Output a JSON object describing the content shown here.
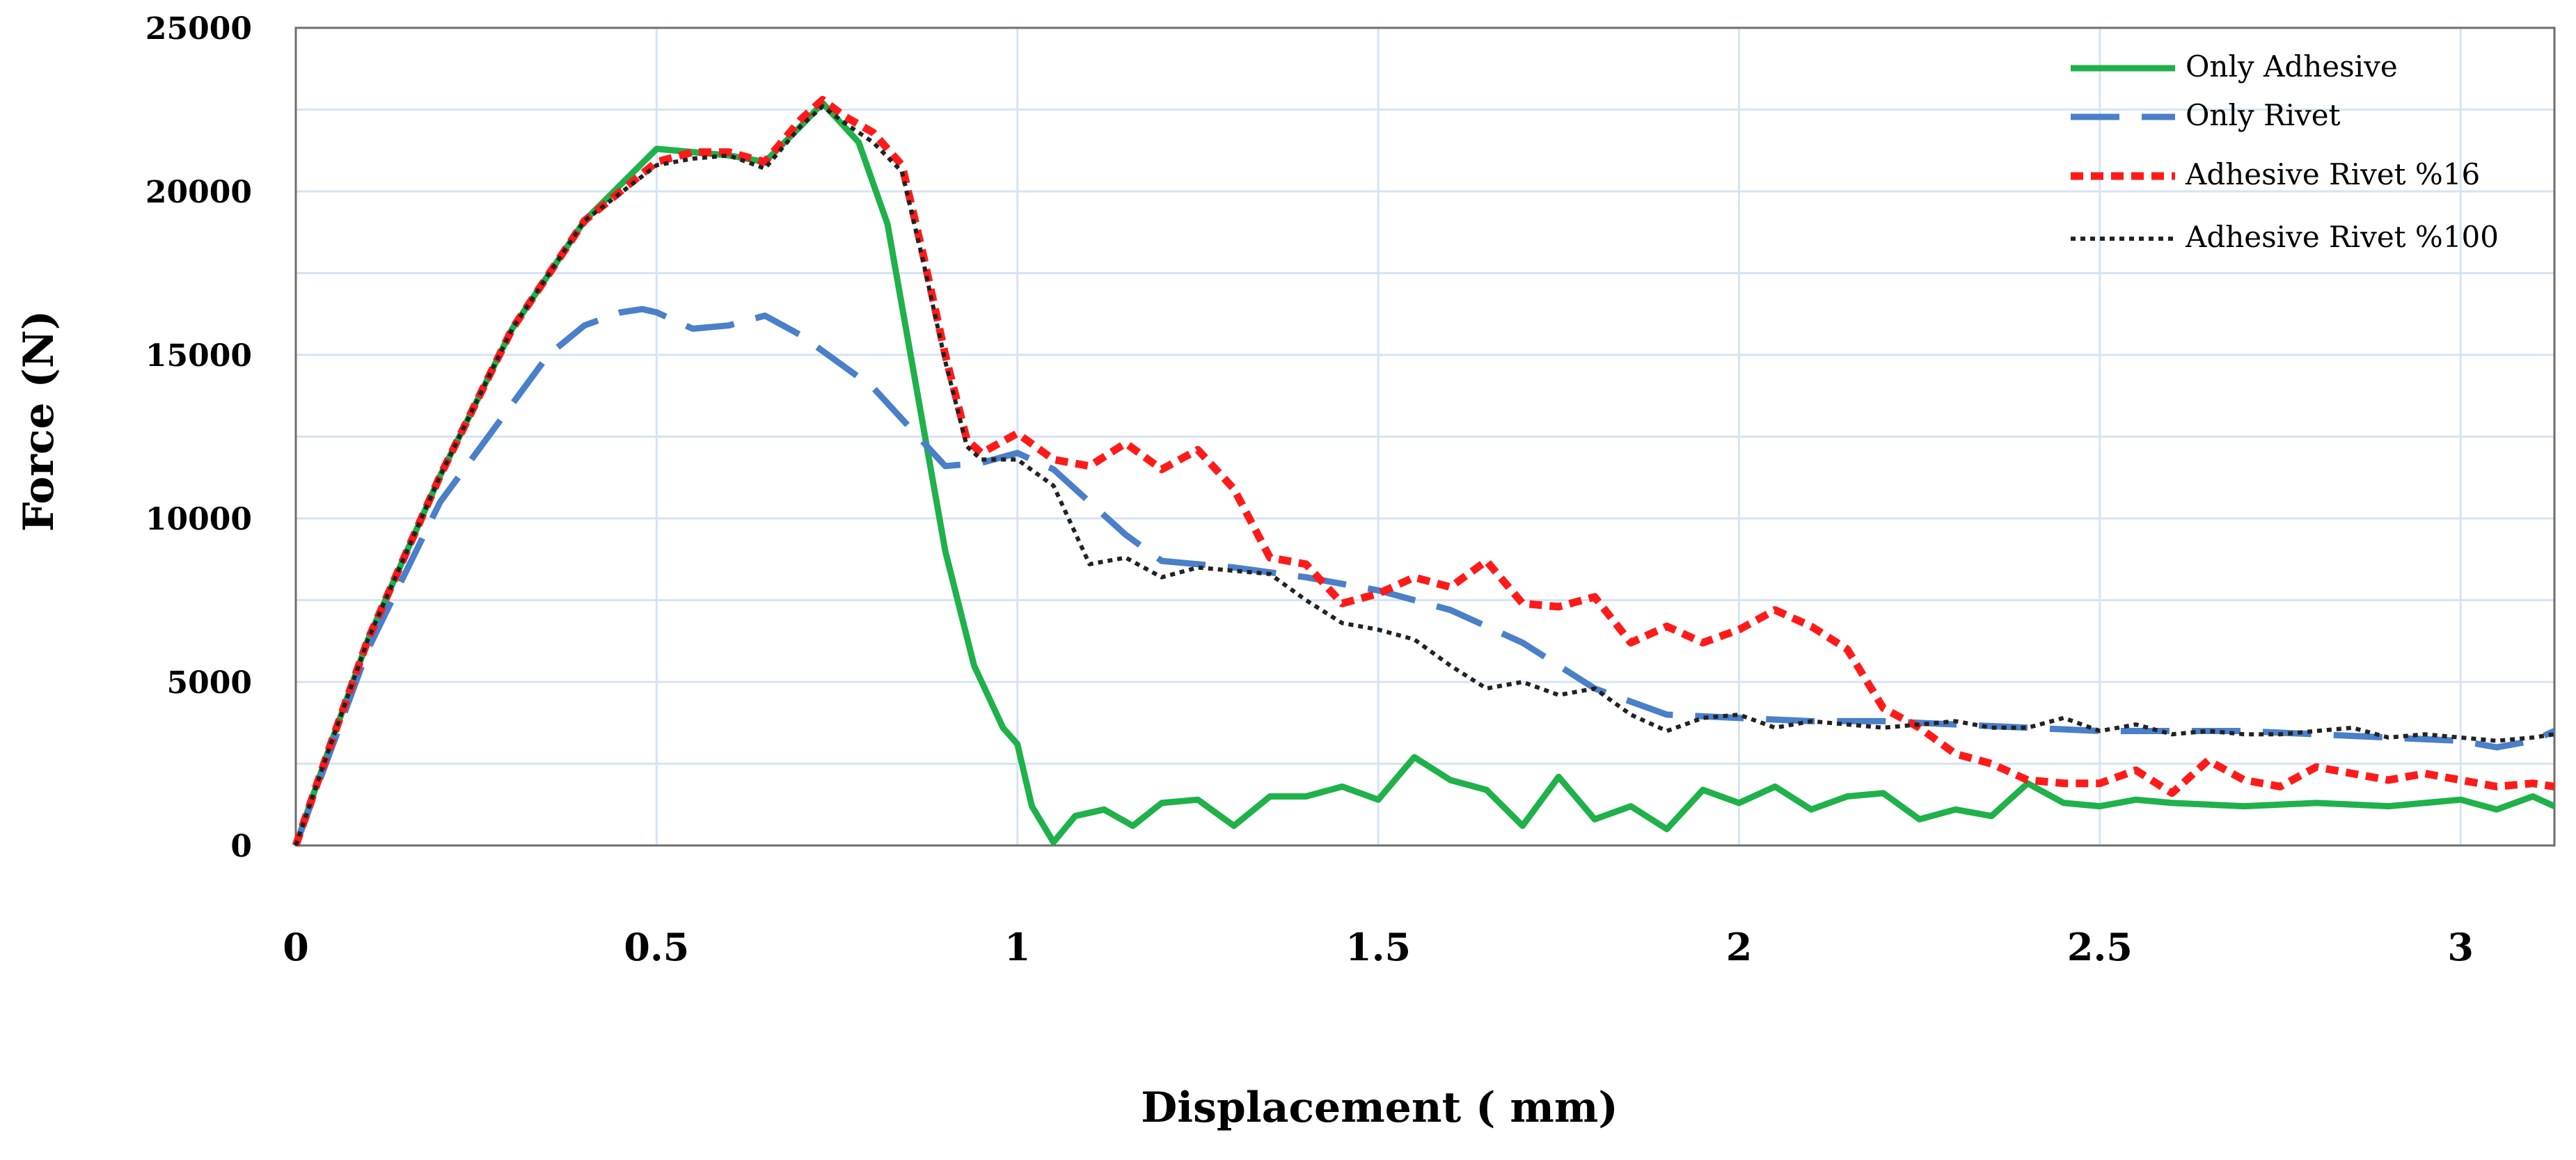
{
  "chart_data": {
    "type": "line",
    "title": "",
    "xlabel": "Displacement ( mm)",
    "ylabel": "Force (N)",
    "xlim": [
      0,
      3.13
    ],
    "ylim": [
      0,
      25000
    ],
    "x_ticks": [
      0,
      0.5,
      1,
      1.5,
      2,
      2.5,
      3
    ],
    "x_tick_labels": [
      "0",
      "0.5",
      "1",
      "1.5",
      "2",
      "2.5",
      "3"
    ],
    "y_ticks": [
      0,
      5000,
      10000,
      15000,
      20000,
      25000
    ],
    "y_tick_labels": [
      "0",
      "5000",
      "10000",
      "15000",
      "20000",
      "25000"
    ],
    "grid": true,
    "legend_position": "top-right",
    "colors": {
      "Only Adhesive": "#1fb14a",
      "Only Rivet": "#4a7fc9",
      "Adhesive Rivet %16": "#ff1a1a",
      "Adhesive Rivet %100": "#222222"
    },
    "series": [
      {
        "name": "Only Adhesive",
        "x": [
          0,
          0.05,
          0.1,
          0.2,
          0.3,
          0.4,
          0.5,
          0.6,
          0.65,
          0.7,
          0.73,
          0.78,
          0.82,
          0.86,
          0.9,
          0.94,
          0.98,
          1.0,
          1.02,
          1.05,
          1.08,
          1.12,
          1.16,
          1.2,
          1.25,
          1.3,
          1.35,
          1.4,
          1.45,
          1.5,
          1.55,
          1.6,
          1.65,
          1.7,
          1.75,
          1.8,
          1.85,
          1.9,
          1.95,
          2.0,
          2.05,
          2.1,
          2.15,
          2.2,
          2.25,
          2.3,
          2.35,
          2.4,
          2.45,
          2.5,
          2.55,
          2.6,
          2.7,
          2.8,
          2.9,
          3.0,
          3.05,
          3.1,
          3.13
        ],
        "y": [
          0,
          3200,
          6300,
          11300,
          15800,
          19100,
          21300,
          21100,
          20900,
          22000,
          22700,
          21500,
          19000,
          14000,
          9000,
          5500,
          3600,
          3100,
          1200,
          100,
          900,
          1100,
          600,
          1300,
          1400,
          600,
          1500,
          1500,
          1800,
          1400,
          2700,
          2000,
          1700,
          600,
          2100,
          800,
          1200,
          500,
          1700,
          1300,
          1800,
          1100,
          1500,
          1600,
          800,
          1100,
          900,
          1900,
          1300,
          1200,
          1400,
          1300,
          1200,
          1300,
          1200,
          1400,
          1100,
          1500,
          1200
        ]
      },
      {
        "name": "Only Rivet",
        "x": [
          0,
          0.05,
          0.1,
          0.2,
          0.3,
          0.35,
          0.4,
          0.45,
          0.48,
          0.5,
          0.55,
          0.6,
          0.65,
          0.7,
          0.75,
          0.8,
          0.85,
          0.9,
          0.95,
          1.0,
          1.05,
          1.1,
          1.15,
          1.2,
          1.3,
          1.4,
          1.5,
          1.6,
          1.7,
          1.8,
          1.9,
          2.0,
          2.1,
          2.2,
          2.3,
          2.4,
          2.5,
          2.6,
          2.7,
          2.8,
          2.9,
          3.0,
          3.05,
          3.1,
          3.13
        ],
        "y": [
          0,
          3000,
          6000,
          10500,
          13500,
          15000,
          15900,
          16300,
          16400,
          16300,
          15800,
          15900,
          16200,
          15600,
          14800,
          14000,
          12800,
          11600,
          11700,
          12000,
          11500,
          10500,
          9500,
          8700,
          8500,
          8200,
          7800,
          7200,
          6200,
          4800,
          4000,
          3900,
          3800,
          3800,
          3700,
          3600,
          3500,
          3500,
          3500,
          3400,
          3300,
          3200,
          3000,
          3200,
          3500
        ]
      },
      {
        "name": "Adhesive Rivet %16",
        "x": [
          0,
          0.05,
          0.1,
          0.2,
          0.3,
          0.4,
          0.5,
          0.55,
          0.6,
          0.65,
          0.7,
          0.73,
          0.76,
          0.8,
          0.84,
          0.87,
          0.9,
          0.93,
          0.95,
          1.0,
          1.05,
          1.1,
          1.15,
          1.2,
          1.25,
          1.3,
          1.35,
          1.4,
          1.45,
          1.5,
          1.55,
          1.6,
          1.65,
          1.7,
          1.75,
          1.8,
          1.85,
          1.9,
          1.95,
          2.0,
          2.05,
          2.1,
          2.15,
          2.2,
          2.25,
          2.3,
          2.35,
          2.4,
          2.45,
          2.5,
          2.55,
          2.6,
          2.65,
          2.7,
          2.75,
          2.8,
          2.85,
          2.9,
          2.95,
          3.0,
          3.05,
          3.1,
          3.13
        ],
        "y": [
          0,
          3200,
          6300,
          11300,
          15800,
          19100,
          20900,
          21200,
          21200,
          20900,
          22200,
          22800,
          22300,
          21800,
          20800,
          18000,
          15000,
          12400,
          12000,
          12600,
          11800,
          11600,
          12300,
          11500,
          12100,
          10900,
          8800,
          8600,
          7400,
          7700,
          8200,
          7900,
          8700,
          7400,
          7300,
          7600,
          6200,
          6700,
          6200,
          6600,
          7200,
          6700,
          6000,
          4200,
          3600,
          2800,
          2500,
          2000,
          1900,
          1900,
          2300,
          1600,
          2600,
          2000,
          1800,
          2400,
          2200,
          2000,
          2200,
          2000,
          1800,
          1900,
          1800
        ]
      },
      {
        "name": "Adhesive Rivet %100",
        "x": [
          0,
          0.05,
          0.1,
          0.2,
          0.3,
          0.4,
          0.5,
          0.55,
          0.6,
          0.65,
          0.7,
          0.73,
          0.76,
          0.8,
          0.84,
          0.87,
          0.9,
          0.93,
          0.95,
          1.0,
          1.05,
          1.1,
          1.15,
          1.2,
          1.25,
          1.3,
          1.35,
          1.4,
          1.45,
          1.5,
          1.55,
          1.6,
          1.65,
          1.7,
          1.75,
          1.8,
          1.85,
          1.9,
          1.95,
          2.0,
          2.05,
          2.1,
          2.15,
          2.2,
          2.25,
          2.3,
          2.35,
          2.4,
          2.45,
          2.5,
          2.55,
          2.6,
          2.65,
          2.7,
          2.75,
          2.8,
          2.85,
          2.9,
          2.95,
          3.0,
          3.05,
          3.1,
          3.13
        ],
        "y": [
          0,
          3200,
          6300,
          11300,
          15800,
          19100,
          20800,
          21000,
          21100,
          20700,
          22000,
          22600,
          22100,
          21500,
          20600,
          17800,
          14800,
          12200,
          11800,
          11800,
          11000,
          8600,
          8800,
          8200,
          8500,
          8400,
          8300,
          7500,
          6800,
          6600,
          6300,
          5500,
          4800,
          5000,
          4600,
          4800,
          4000,
          3500,
          3900,
          4000,
          3600,
          3800,
          3700,
          3600,
          3700,
          3800,
          3600,
          3600,
          3900,
          3500,
          3700,
          3400,
          3500,
          3400,
          3400,
          3500,
          3600,
          3300,
          3400,
          3300,
          3200,
          3300,
          3400
        ]
      }
    ]
  }
}
